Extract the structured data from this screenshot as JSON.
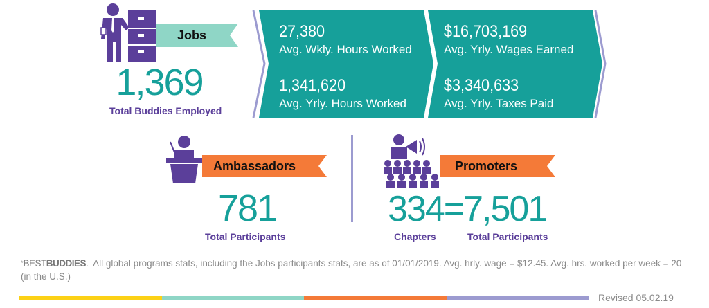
{
  "colors": {
    "teal": "#16a09a",
    "purple": "#5b3f9a",
    "light_teal": "#8fd6c6",
    "orange": "#f47a38",
    "lavender": "#9c9bd0",
    "yellow": "#fcd116"
  },
  "jobs": {
    "icon": "businessman-filing-cabinet-icon",
    "banner": "Jobs",
    "total": "1,369",
    "total_label": "Total Buddies Employed",
    "stats": [
      {
        "value": "27,380",
        "label": "Avg. Wkly. Hours Worked"
      },
      {
        "value": "1,341,620",
        "label": "Avg. Yrly. Hours Worked"
      },
      {
        "value": "$16,703,169",
        "label": "Avg. Yrly. Wages Earned"
      },
      {
        "value": "$3,340,633",
        "label": "Avg. Yrly. Taxes Paid"
      }
    ]
  },
  "ambassadors": {
    "icon": "speaker-podium-icon",
    "banner": "Ambassadors",
    "total": "781",
    "total_label": "Total Participants"
  },
  "promoters": {
    "icon": "megaphone-crowd-icon",
    "banner": "Promoters",
    "chapters": "334",
    "equals": "=",
    "participants": "7,501",
    "chapters_label": "Chapters",
    "participants_label": "Total Participants"
  },
  "footer": {
    "asterisk": "*",
    "brand_light": "BEST",
    "brand_bold": "BUDDIES",
    "brand_dot": ".",
    "note": "All global programs stats, including the Jobs participants stats, are as of 01/01/2019. Avg. hrly. wage = $12.45. Avg. hrs. worked per week = 20 (in the U.S.)",
    "revised": "Revised 05.02.19"
  }
}
